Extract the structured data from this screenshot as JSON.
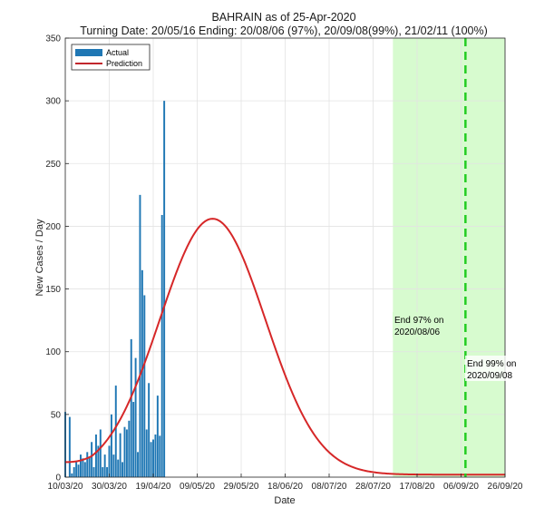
{
  "chart_data": {
    "type": "bar+line",
    "title": "BAHRAIN as of 25-Apr-2020",
    "subtitle": "Turning Date: 20/05/16  Ending: 20/08/06 (97%), 20/09/08(99%), 21/02/11 (100%)",
    "xlabel": "Date",
    "ylabel": "New Cases / Day",
    "ylim": [
      0,
      350
    ],
    "yticks": [
      0,
      50,
      100,
      150,
      200,
      250,
      300,
      350
    ],
    "x_start": "2020-03-10",
    "x_end": "2020-09-26",
    "xtick_labels": [
      "10/03/20",
      "30/03/20",
      "19/04/20",
      "09/05/20",
      "29/05/20",
      "18/06/20",
      "08/07/20",
      "28/07/20",
      "17/08/20",
      "06/09/20",
      "26/09/20"
    ],
    "grid": true,
    "legend": {
      "position": "top-left",
      "entries": [
        "Actual",
        "Prediction"
      ]
    },
    "colors": {
      "actual": "#1f77b4",
      "prediction": "#d62728",
      "shade": "#d7fbcf",
      "marker": "#22cc22"
    },
    "series": [
      {
        "name": "Actual",
        "type": "bar",
        "start_day_offset": 0,
        "values": [
          52,
          0,
          48,
          3,
          8,
          12,
          10,
          18,
          15,
          12,
          20,
          16,
          28,
          8,
          34,
          25,
          38,
          8,
          18,
          8,
          25,
          50,
          18,
          73,
          14,
          35,
          12,
          40,
          38,
          45,
          110,
          60,
          95,
          20,
          225,
          165,
          145,
          38,
          75,
          28,
          30,
          34,
          65,
          33,
          209,
          300
        ]
      },
      {
        "name": "Prediction",
        "type": "line",
        "model": "gaussian",
        "peak_date": "2020-05-16",
        "peak_value": 206,
        "sigma_days": 24,
        "baseline": 2,
        "start_value": 8
      }
    ],
    "shaded_region": {
      "start": "2020-08-06",
      "end": "2020-09-26"
    },
    "vertical_line": {
      "date": "2020-09-08",
      "style": "dashed"
    },
    "annotations": [
      {
        "id": "end97",
        "lines": [
          "End 97% on",
          "2020/08/06"
        ]
      },
      {
        "id": "end99",
        "lines": [
          "End 99% on",
          "2020/09/08"
        ]
      }
    ]
  }
}
